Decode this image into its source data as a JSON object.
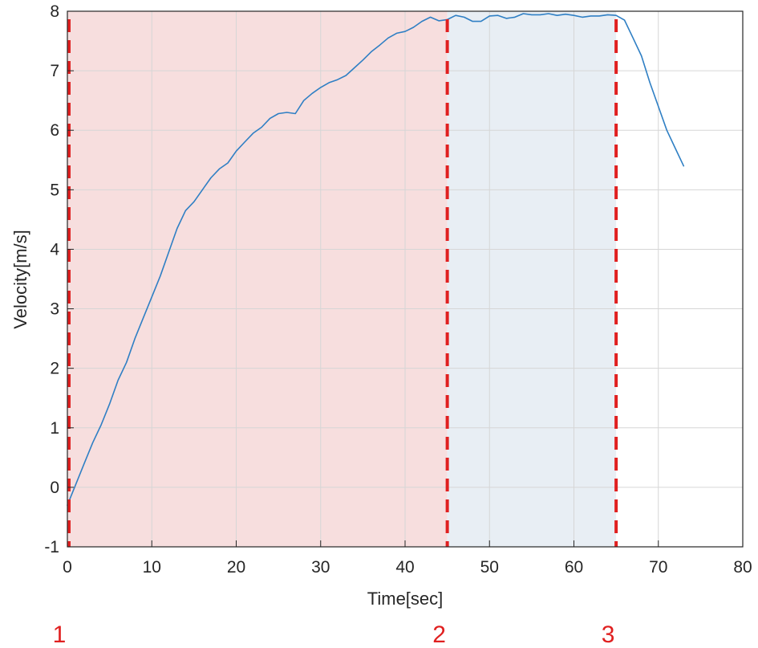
{
  "chart_data": {
    "type": "line",
    "xlabel": "Time[sec]",
    "ylabel": "Velocity[m/s]",
    "xlim": [
      0,
      80
    ],
    "ylim": [
      -1,
      8
    ],
    "xticks": [
      0,
      10,
      20,
      30,
      40,
      50,
      60,
      70,
      80
    ],
    "yticks": [
      -1,
      0,
      1,
      2,
      3,
      4,
      5,
      6,
      7,
      8
    ],
    "grid": true,
    "series": [
      {
        "x": [
          0,
          1,
          2,
          3,
          4,
          5,
          6,
          7,
          8,
          9,
          10,
          11,
          12,
          13,
          14,
          15,
          16,
          17,
          18,
          19,
          20,
          21,
          22,
          23,
          24,
          25,
          26,
          27,
          28,
          29,
          30,
          31,
          32,
          33,
          34,
          35,
          36,
          37,
          38,
          39,
          40,
          41,
          42,
          43,
          44,
          45,
          46,
          47,
          48,
          49,
          50,
          51,
          52,
          53,
          54,
          55,
          56,
          57,
          58,
          59,
          60,
          61,
          62,
          63,
          64,
          65,
          66,
          67,
          68,
          69,
          70,
          71,
          72,
          73
        ],
        "y": [
          -0.3,
          0.05,
          0.4,
          0.75,
          1.05,
          1.4,
          1.8,
          2.1,
          2.5,
          2.85,
          3.2,
          3.55,
          3.95,
          4.35,
          4.65,
          4.8,
          5.0,
          5.2,
          5.35,
          5.45,
          5.65,
          5.8,
          5.95,
          6.05,
          6.2,
          6.28,
          6.3,
          6.28,
          6.5,
          6.62,
          6.72,
          6.8,
          6.85,
          6.92,
          7.05,
          7.18,
          7.32,
          7.43,
          7.55,
          7.63,
          7.66,
          7.73,
          7.83,
          7.9,
          7.84,
          7.86,
          7.93,
          7.9,
          7.83,
          7.83,
          7.92,
          7.93,
          7.88,
          7.9,
          7.96,
          7.94,
          7.94,
          7.96,
          7.93,
          7.95,
          7.93,
          7.9,
          7.92,
          7.92,
          7.94,
          7.93,
          7.85,
          7.55,
          7.25,
          6.8,
          6.4,
          6.0,
          5.7,
          5.4
        ]
      }
    ],
    "line_color": "#2f7fc4",
    "regions": [
      {
        "from": 0,
        "to": 45,
        "color": "#f7dede"
      },
      {
        "from": 45,
        "to": 65,
        "color": "#e8eef4"
      }
    ],
    "vlines": [
      {
        "x": 0,
        "label": "1"
      },
      {
        "x": 45,
        "label": "2"
      },
      {
        "x": 65,
        "label": "3"
      }
    ],
    "marker_color": "#e02020"
  }
}
